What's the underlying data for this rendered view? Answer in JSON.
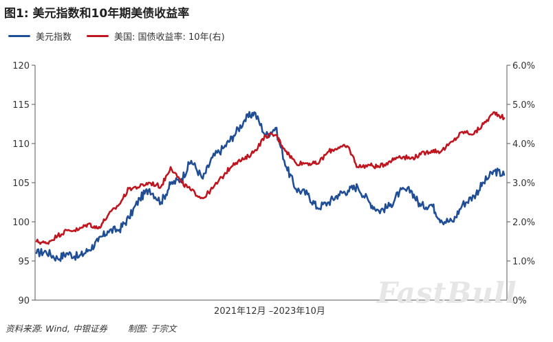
{
  "title": "图1: 美元指数和10年期美债收益率",
  "legend": [
    {
      "label": "美元指数",
      "color": "#1f4e96"
    },
    {
      "label": "美国: 国债收益率: 10年(右)",
      "color": "#c0141e"
    }
  ],
  "source_label": "资料来源: Wind, 中银证券",
  "author_label": "制图: 于宗文",
  "watermark": "FastBull",
  "chart_data": {
    "type": "line",
    "xlabel": "2021年12月 –2023年10月",
    "x_range": [
      "2021-12",
      "2023-10"
    ],
    "y_left": {
      "min": 90,
      "max": 120,
      "ticks": [
        "90",
        "95",
        "100",
        "105",
        "110",
        "115",
        "120"
      ]
    },
    "y_right": {
      "min": 0,
      "max": 6,
      "ticks": [
        "0%",
        "1.0%",
        "2.0%",
        "3.0%",
        "4.0%",
        "5.0%",
        "6.0%"
      ]
    },
    "series": [
      {
        "name": "美元指数",
        "axis": "left",
        "color": "#1f4e96",
        "x": [
          "2021-12-01",
          "2021-12-15",
          "2022-01-01",
          "2022-01-15",
          "2022-02-01",
          "2022-02-15",
          "2022-03-01",
          "2022-03-15",
          "2022-04-01",
          "2022-04-15",
          "2022-05-01",
          "2022-05-15",
          "2022-06-01",
          "2022-06-15",
          "2022-07-01",
          "2022-07-15",
          "2022-08-01",
          "2022-08-15",
          "2022-09-01",
          "2022-09-15",
          "2022-10-01",
          "2022-10-15",
          "2022-11-01",
          "2022-11-15",
          "2022-12-01",
          "2022-12-15",
          "2023-01-01",
          "2023-01-15",
          "2023-02-01",
          "2023-02-15",
          "2023-03-01",
          "2023-03-15",
          "2023-04-01",
          "2023-04-15",
          "2023-05-01",
          "2023-05-15",
          "2023-06-01",
          "2023-06-15",
          "2023-07-01",
          "2023-07-15",
          "2023-08-01",
          "2023-08-15",
          "2023-09-01",
          "2023-09-15",
          "2023-10-01",
          "2023-10-15"
        ],
        "values": [
          96.0,
          96.2,
          95.3,
          96.0,
          95.5,
          96.4,
          97.5,
          98.8,
          99.0,
          100.5,
          103.0,
          104.2,
          102.5,
          104.8,
          105.5,
          107.8,
          105.5,
          108.2,
          109.5,
          111.0,
          113.0,
          114.0,
          111.0,
          112.0,
          107.0,
          104.2,
          103.5,
          101.8,
          102.5,
          103.5,
          104.0,
          104.5,
          102.5,
          101.4,
          102.0,
          103.8,
          104.0,
          102.0,
          102.2,
          100.2,
          100.0,
          102.2,
          103.3,
          105.0,
          106.5,
          106.0
        ]
      },
      {
        "name": "美国: 国债收益率: 10年(右)",
        "axis": "right",
        "color": "#c0141e",
        "x": [
          "2021-12-01",
          "2021-12-15",
          "2022-01-01",
          "2022-01-15",
          "2022-02-01",
          "2022-02-15",
          "2022-03-01",
          "2022-03-15",
          "2022-04-01",
          "2022-04-15",
          "2022-05-01",
          "2022-05-15",
          "2022-06-01",
          "2022-06-15",
          "2022-07-01",
          "2022-07-15",
          "2022-08-01",
          "2022-08-15",
          "2022-09-01",
          "2022-09-15",
          "2022-10-01",
          "2022-10-15",
          "2022-11-01",
          "2022-11-15",
          "2022-12-01",
          "2022-12-15",
          "2023-01-01",
          "2023-01-15",
          "2023-02-01",
          "2023-02-15",
          "2023-03-01",
          "2023-03-15",
          "2023-04-01",
          "2023-04-15",
          "2023-05-01",
          "2023-05-15",
          "2023-06-01",
          "2023-06-15",
          "2023-07-01",
          "2023-07-15",
          "2023-08-01",
          "2023-08-15",
          "2023-09-01",
          "2023-09-15",
          "2023-10-01",
          "2023-10-15"
        ],
        "values": [
          1.5,
          1.45,
          1.65,
          1.78,
          1.8,
          1.95,
          1.83,
          2.15,
          2.45,
          2.85,
          2.9,
          3.0,
          2.9,
          3.4,
          3.0,
          2.8,
          2.6,
          2.85,
          3.2,
          3.5,
          3.6,
          3.8,
          4.2,
          4.22,
          3.8,
          3.5,
          3.5,
          3.48,
          3.8,
          3.9,
          3.92,
          3.4,
          3.45,
          3.4,
          3.55,
          3.68,
          3.62,
          3.72,
          3.82,
          3.8,
          4.05,
          4.3,
          4.25,
          4.5,
          4.8,
          4.65
        ]
      }
    ]
  }
}
